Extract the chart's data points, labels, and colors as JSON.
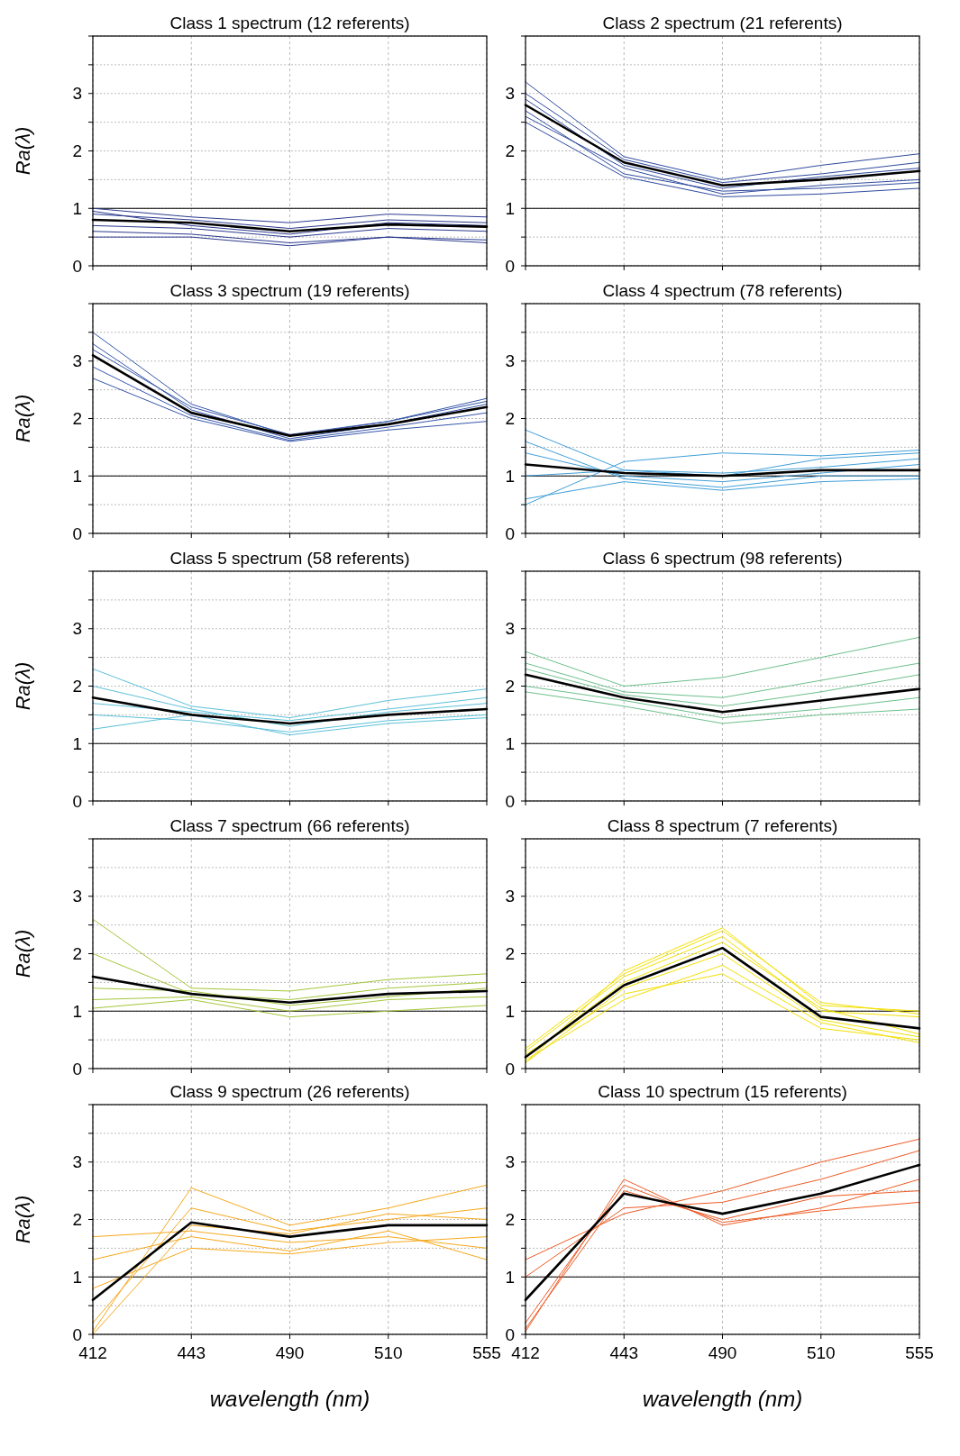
{
  "chart_data": [
    {
      "type": "line",
      "title": "Class 1 spectrum (12 referents)",
      "ylabel": "Ra(λ)",
      "categories": [
        "412",
        "443",
        "490",
        "510",
        "555"
      ],
      "ylim": [
        0,
        4
      ],
      "yticks": [
        0,
        {
          "value": 0.5,
          "label": null
        },
        1,
        {
          "value": 1.5,
          "label": null
        },
        2,
        {
          "value": 2.5,
          "label": null
        },
        3,
        {
          "value": 3.5,
          "label": null
        },
        {
          "value": 4,
          "label": null
        }
      ],
      "grid": true,
      "tick_labels": "y",
      "ref_lines": [
        {
          "axis": "y",
          "value": 1,
          "color": "#000000"
        }
      ],
      "series": [
        {
          "color": "#2b3a8f",
          "values": [
            1.0,
            0.85,
            0.75,
            0.9,
            0.85
          ]
        },
        {
          "color": "#2b3a8f",
          "values": [
            0.6,
            0.55,
            0.4,
            0.5,
            0.45
          ]
        },
        {
          "color": "#2b3a8f",
          "values": [
            0.9,
            0.8,
            0.65,
            0.8,
            0.75
          ]
        },
        {
          "color": "#2b3a8f",
          "values": [
            0.5,
            0.5,
            0.35,
            0.5,
            0.4
          ]
        },
        {
          "color": "#2b3a8f",
          "values": [
            0.95,
            0.7,
            0.55,
            0.75,
            0.7
          ]
        },
        {
          "color": "#2b3a8f",
          "values": [
            0.7,
            0.65,
            0.5,
            0.65,
            0.6
          ]
        },
        {
          "color": "#000000",
          "values": [
            0.8,
            0.75,
            0.6,
            0.72,
            0.68
          ]
        }
      ]
    },
    {
      "type": "line",
      "title": "Class 2 spectrum (21 referents)",
      "categories": [
        "412",
        "443",
        "490",
        "510",
        "555"
      ],
      "ylim": [
        0,
        4
      ],
      "yticks": [
        0,
        {
          "value": 0.5,
          "label": null
        },
        1,
        {
          "value": 1.5,
          "label": null
        },
        2,
        {
          "value": 2.5,
          "label": null
        },
        3,
        {
          "value": 3.5,
          "label": null
        },
        {
          "value": 4,
          "label": null
        }
      ],
      "grid": true,
      "tick_labels": "y",
      "ref_lines": [
        {
          "axis": "y",
          "value": 1,
          "color": "#000000"
        }
      ],
      "series": [
        {
          "color": "#2e4a9e",
          "values": [
            3.2,
            1.9,
            1.5,
            1.75,
            1.95
          ]
        },
        {
          "color": "#2e4a9e",
          "values": [
            2.5,
            1.55,
            1.2,
            1.25,
            1.35
          ]
        },
        {
          "color": "#2e4a9e",
          "values": [
            3.0,
            1.85,
            1.45,
            1.6,
            1.8
          ]
        },
        {
          "color": "#2e4a9e",
          "values": [
            2.6,
            1.7,
            1.25,
            1.4,
            1.5
          ]
        },
        {
          "color": "#2e4a9e",
          "values": [
            2.9,
            1.75,
            1.35,
            1.55,
            1.7
          ]
        },
        {
          "color": "#2e4a9e",
          "values": [
            2.7,
            1.6,
            1.3,
            1.35,
            1.45
          ]
        },
        {
          "color": "#000000",
          "values": [
            2.8,
            1.8,
            1.4,
            1.5,
            1.65
          ]
        }
      ]
    },
    {
      "type": "line",
      "title": "Class 3 spectrum (19 referents)",
      "ylabel": "Ra(λ)",
      "categories": [
        "412",
        "443",
        "490",
        "510",
        "555"
      ],
      "ylim": [
        0,
        4
      ],
      "yticks": [
        0,
        {
          "value": 0.5,
          "label": null
        },
        1,
        {
          "value": 1.5,
          "label": null
        },
        2,
        {
          "value": 2.5,
          "label": null
        },
        3,
        {
          "value": 3.5,
          "label": null
        },
        {
          "value": 4,
          "label": null
        }
      ],
      "grid": true,
      "tick_labels": "y",
      "ref_lines": [
        {
          "axis": "y",
          "value": 1,
          "color": "#000000"
        }
      ],
      "series": [
        {
          "color": "#3556a8",
          "values": [
            3.5,
            2.25,
            1.7,
            1.95,
            2.3
          ]
        },
        {
          "color": "#3556a8",
          "values": [
            2.7,
            2.0,
            1.6,
            1.8,
            1.95
          ]
        },
        {
          "color": "#3556a8",
          "values": [
            3.3,
            2.15,
            1.65,
            1.9,
            2.25
          ]
        },
        {
          "color": "#3556a8",
          "values": [
            2.9,
            2.05,
            1.62,
            1.85,
            2.1
          ]
        },
        {
          "color": "#3556a8",
          "values": [
            3.2,
            2.2,
            1.72,
            1.95,
            2.35
          ]
        },
        {
          "color": "#000000",
          "values": [
            3.1,
            2.1,
            1.7,
            1.9,
            2.2
          ]
        }
      ]
    },
    {
      "type": "line",
      "title": "Class 4 spectrum (78 referents)",
      "categories": [
        "412",
        "443",
        "490",
        "510",
        "555"
      ],
      "ylim": [
        0,
        4
      ],
      "yticks": [
        0,
        {
          "value": 0.5,
          "label": null
        },
        1,
        {
          "value": 1.5,
          "label": null
        },
        2,
        {
          "value": 2.5,
          "label": null
        },
        3,
        {
          "value": 3.5,
          "label": null
        },
        {
          "value": 4,
          "label": null
        }
      ],
      "grid": true,
      "tick_labels": "y",
      "ref_lines": [
        {
          "axis": "y",
          "value": 1,
          "color": "#000000"
        }
      ],
      "series": [
        {
          "color": "#3f9fd8",
          "values": [
            1.8,
            1.1,
            1.0,
            1.3,
            1.4
          ]
        },
        {
          "color": "#3f9fd8",
          "values": [
            0.5,
            1.25,
            1.4,
            1.35,
            1.45
          ]
        },
        {
          "color": "#3f9fd8",
          "values": [
            0.6,
            0.9,
            0.75,
            0.9,
            0.95
          ]
        },
        {
          "color": "#3f9fd8",
          "values": [
            1.4,
            1.0,
            0.9,
            1.05,
            1.2
          ]
        },
        {
          "color": "#3f9fd8",
          "values": [
            1.0,
            1.1,
            1.05,
            1.15,
            1.3
          ]
        },
        {
          "color": "#3f9fd8",
          "values": [
            1.6,
            0.95,
            0.8,
            1.0,
            1.0
          ]
        },
        {
          "color": "#000000",
          "values": [
            1.2,
            1.05,
            1.0,
            1.1,
            1.1
          ]
        }
      ]
    },
    {
      "type": "line",
      "title": "Class 5 spectrum (58 referents)",
      "ylabel": "Ra(λ)",
      "categories": [
        "412",
        "443",
        "490",
        "510",
        "555"
      ],
      "ylim": [
        0,
        4
      ],
      "yticks": [
        0,
        {
          "value": 0.5,
          "label": null
        },
        1,
        {
          "value": 1.5,
          "label": null
        },
        2,
        {
          "value": 2.5,
          "label": null
        },
        3,
        {
          "value": 3.5,
          "label": null
        },
        {
          "value": 4,
          "label": null
        }
      ],
      "grid": true,
      "tick_labels": "y",
      "ref_lines": [
        {
          "axis": "y",
          "value": 1,
          "color": "#000000"
        }
      ],
      "series": [
        {
          "color": "#5bc0d8",
          "values": [
            2.3,
            1.65,
            1.45,
            1.75,
            1.95
          ]
        },
        {
          "color": "#5bc0d8",
          "values": [
            1.25,
            1.5,
            1.15,
            1.35,
            1.45
          ]
        },
        {
          "color": "#5bc0d8",
          "values": [
            2.0,
            1.6,
            1.3,
            1.55,
            1.7
          ]
        },
        {
          "color": "#5bc0d8",
          "values": [
            1.5,
            1.4,
            1.2,
            1.4,
            1.5
          ]
        },
        {
          "color": "#5bc0d8",
          "values": [
            1.7,
            1.55,
            1.4,
            1.6,
            1.8
          ]
        },
        {
          "color": "#000000",
          "values": [
            1.8,
            1.5,
            1.35,
            1.5,
            1.6
          ]
        }
      ]
    },
    {
      "type": "line",
      "title": "Class 6 spectrum (98 referents)",
      "categories": [
        "412",
        "443",
        "490",
        "510",
        "555"
      ],
      "ylim": [
        0,
        4
      ],
      "yticks": [
        0,
        {
          "value": 0.5,
          "label": null
        },
        1,
        {
          "value": 1.5,
          "label": null
        },
        2,
        {
          "value": 2.5,
          "label": null
        },
        3,
        {
          "value": 3.5,
          "label": null
        },
        {
          "value": 4,
          "label": null
        }
      ],
      "grid": true,
      "tick_labels": "y",
      "ref_lines": [
        {
          "axis": "y",
          "value": 1,
          "color": "#000000"
        }
      ],
      "series": [
        {
          "color": "#6cbf8c",
          "values": [
            2.6,
            2.0,
            2.15,
            2.5,
            2.85
          ]
        },
        {
          "color": "#6cbf8c",
          "values": [
            1.9,
            1.65,
            1.35,
            1.5,
            1.6
          ]
        },
        {
          "color": "#6cbf8c",
          "values": [
            2.4,
            1.9,
            1.8,
            2.1,
            2.4
          ]
        },
        {
          "color": "#6cbf8c",
          "values": [
            2.0,
            1.75,
            1.45,
            1.6,
            1.8
          ]
        },
        {
          "color": "#6cbf8c",
          "values": [
            2.3,
            1.85,
            1.65,
            1.9,
            2.2
          ]
        },
        {
          "color": "#000000",
          "values": [
            2.2,
            1.8,
            1.55,
            1.75,
            1.95
          ]
        }
      ]
    },
    {
      "type": "line",
      "title": "Class 7 spectrum (66 referents)",
      "ylabel": "Ra(λ)",
      "categories": [
        "412",
        "443",
        "490",
        "510",
        "555"
      ],
      "ylim": [
        0,
        4
      ],
      "yticks": [
        0,
        {
          "value": 0.5,
          "label": null
        },
        1,
        {
          "value": 1.5,
          "label": null
        },
        2,
        {
          "value": 2.5,
          "label": null
        },
        3,
        {
          "value": 3.5,
          "label": null
        },
        {
          "value": 4,
          "label": null
        }
      ],
      "grid": true,
      "tick_labels": "y",
      "ref_lines": [
        {
          "axis": "y",
          "value": 1,
          "color": "#000000"
        }
      ],
      "series": [
        {
          "color": "#a4c63a",
          "values": [
            2.6,
            1.4,
            1.35,
            1.55,
            1.65
          ]
        },
        {
          "color": "#a4c63a",
          "values": [
            1.05,
            1.2,
            0.9,
            1.0,
            1.1
          ]
        },
        {
          "color": "#a4c63a",
          "values": [
            2.0,
            1.3,
            1.2,
            1.4,
            1.5
          ]
        },
        {
          "color": "#a4c63a",
          "values": [
            1.2,
            1.25,
            1.0,
            1.2,
            1.25
          ]
        },
        {
          "color": "#a4c63a",
          "values": [
            1.4,
            1.35,
            1.1,
            1.25,
            1.4
          ]
        },
        {
          "color": "#000000",
          "values": [
            1.6,
            1.3,
            1.15,
            1.3,
            1.35
          ]
        }
      ]
    },
    {
      "type": "line",
      "title": "Class 8 spectrum (7 referents)",
      "categories": [
        "412",
        "443",
        "490",
        "510",
        "555"
      ],
      "ylim": [
        0,
        4
      ],
      "yticks": [
        0,
        {
          "value": 0.5,
          "label": null
        },
        1,
        {
          "value": 1.5,
          "label": null
        },
        2,
        {
          "value": 2.5,
          "label": null
        },
        3,
        {
          "value": 3.5,
          "label": null
        },
        {
          "value": 4,
          "label": null
        }
      ],
      "grid": true,
      "tick_labels": "y",
      "ref_lines": [
        {
          "axis": "y",
          "value": 1,
          "color": "#000000"
        }
      ],
      "series": [
        {
          "color": "#f2e000",
          "values": [
            0.1,
            1.7,
            2.45,
            1.1,
            1.0
          ]
        },
        {
          "color": "#f2e000",
          "values": [
            0.25,
            1.3,
            1.65,
            0.7,
            0.5
          ]
        },
        {
          "color": "#f2e000",
          "values": [
            0.3,
            1.6,
            2.3,
            1.0,
            0.9
          ]
        },
        {
          "color": "#f2e000",
          "values": [
            0.15,
            1.2,
            1.8,
            0.8,
            0.45
          ]
        },
        {
          "color": "#f2e000",
          "values": [
            0.2,
            1.5,
            2.2,
            1.05,
            0.6
          ]
        },
        {
          "color": "#f2e000",
          "values": [
            0.1,
            1.4,
            2.0,
            0.85,
            0.55
          ]
        },
        {
          "color": "#f2e000",
          "values": [
            0.35,
            1.65,
            2.4,
            1.15,
            0.95
          ]
        },
        {
          "color": "#000000",
          "values": [
            0.2,
            1.45,
            2.1,
            0.9,
            0.7
          ]
        }
      ]
    },
    {
      "type": "line",
      "title": "Class 9 spectrum (26 referents)",
      "ylabel": "Ra(λ)",
      "xlabel": "wavelength (nm)",
      "categories": [
        "412",
        "443",
        "490",
        "510",
        "555"
      ],
      "ylim": [
        0,
        4
      ],
      "yticks": [
        0,
        {
          "value": 0.5,
          "label": null
        },
        1,
        {
          "value": 1.5,
          "label": null
        },
        2,
        {
          "value": 2.5,
          "label": null
        },
        3,
        {
          "value": 3.5,
          "label": null
        },
        {
          "value": 4,
          "label": null
        }
      ],
      "grid": true,
      "ref_lines": [
        {
          "axis": "y",
          "value": 1,
          "color": "#000000"
        }
      ],
      "series": [
        {
          "color": "#f7a81b",
          "values": [
            1.7,
            1.8,
            1.6,
            1.7,
            1.5
          ]
        },
        {
          "color": "#f7a81b",
          "values": [
            0.05,
            2.55,
            1.9,
            2.2,
            2.6
          ]
        },
        {
          "color": "#f7a81b",
          "values": [
            1.3,
            1.7,
            1.45,
            1.8,
            1.3
          ]
        },
        {
          "color": "#f7a81b",
          "values": [
            0.2,
            2.2,
            1.8,
            2.0,
            2.2
          ]
        },
        {
          "color": "#f7a81b",
          "values": [
            0.8,
            1.5,
            1.4,
            1.6,
            1.7
          ]
        },
        {
          "color": "#f7a81b",
          "values": [
            0.0,
            1.9,
            1.75,
            2.1,
            2.0
          ]
        },
        {
          "color": "#000000",
          "values": [
            0.6,
            1.95,
            1.7,
            1.9,
            1.9
          ]
        }
      ]
    },
    {
      "type": "line",
      "title": "Class 10 spectrum (15 referents)",
      "xlabel": "wavelength (nm)",
      "categories": [
        "412",
        "443",
        "490",
        "510",
        "555"
      ],
      "ylim": [
        0,
        4
      ],
      "yticks": [
        0,
        {
          "value": 0.5,
          "label": null
        },
        1,
        {
          "value": 1.5,
          "label": null
        },
        2,
        {
          "value": 2.5,
          "label": null
        },
        3,
        {
          "value": 3.5,
          "label": null
        },
        {
          "value": 4,
          "label": null
        }
      ],
      "grid": true,
      "ref_lines": [
        {
          "axis": "y",
          "value": 1,
          "color": "#000000"
        }
      ],
      "series": [
        {
          "color": "#ee5a24",
          "values": [
            1.3,
            2.1,
            2.5,
            3.0,
            3.4
          ]
        },
        {
          "color": "#ee5a24",
          "values": [
            0.05,
            2.7,
            1.9,
            2.2,
            2.7
          ]
        },
        {
          "color": "#ee5a24",
          "values": [
            1.0,
            2.2,
            2.3,
            2.7,
            3.2
          ]
        },
        {
          "color": "#ee5a24",
          "values": [
            0.2,
            2.6,
            1.95,
            2.15,
            2.3
          ]
        },
        {
          "color": "#ee5a24",
          "values": [
            0.1,
            2.5,
            2.0,
            2.4,
            2.5
          ]
        },
        {
          "color": "#000000",
          "values": [
            0.6,
            2.45,
            2.1,
            2.45,
            2.95
          ]
        }
      ]
    }
  ]
}
